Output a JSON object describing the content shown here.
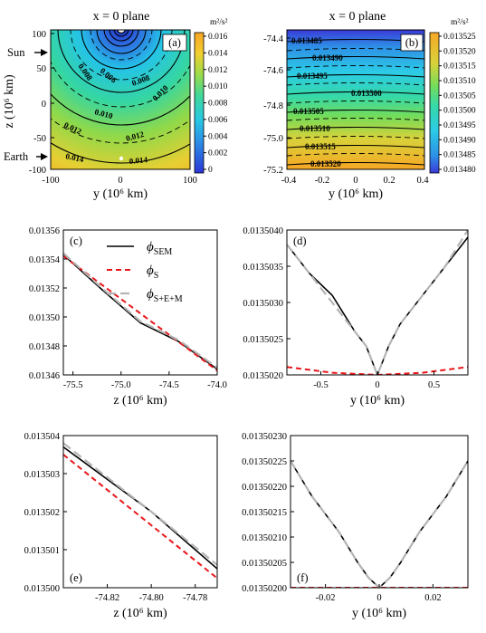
{
  "colors": {
    "sem": "#000000",
    "s": "#e8161b",
    "sem_total": "#b4b4b4",
    "sun_arrow": "#000000"
  },
  "panel_a": {
    "title": "x = 0 plane",
    "label": "(a)",
    "xlabel": "y (10⁶ km)",
    "ylabel": "z (10⁶ km)",
    "xticks": [
      "-100",
      "0",
      "100"
    ],
    "yticks": [
      "100",
      "50",
      "0",
      "-50",
      "-100"
    ],
    "colorbar_unit": "m²/s²",
    "colorbar_ticks": [
      "0.016",
      "0.014",
      "0.012",
      "0.010",
      "0.008",
      "0.006",
      "0.004",
      "0.002",
      "0"
    ],
    "contour_labels": [
      "0.006",
      "0.008",
      "0.008",
      "0.010",
      "0.010",
      "0.012",
      "0.012",
      "0.014",
      "0.014"
    ],
    "markers": {
      "sun": "Sun",
      "earth": "Earth"
    }
  },
  "panel_b": {
    "title": "x = 0 plane",
    "label": "(b)",
    "xlabel": "y (10⁶ km)",
    "xticks": [
      "-0.4",
      "-0.2",
      "0",
      "0.2",
      "0.4"
    ],
    "yticks": [
      "-74.4",
      "-74.6",
      "-74.8",
      "-75.0",
      "-75.2"
    ],
    "colorbar_unit": "m²/s²",
    "colorbar_ticks": [
      "0.013525",
      "0.013520",
      "0.013515",
      "0.013510",
      "0.013505",
      "0.013500",
      "0.013495",
      "0.013490",
      "0.013485",
      "0.013480"
    ],
    "contour_labels": [
      "0.013485",
      "0.013490",
      "0.013495",
      "0.013500",
      "0.013505",
      "0.013510",
      "0.013515",
      "0.013520"
    ]
  },
  "legend": {
    "entries": [
      {
        "main": "ϕ",
        "sub": "SEM"
      },
      {
        "main": "ϕ",
        "sub": "S"
      },
      {
        "main": "ϕ",
        "sub": "S+E+M"
      }
    ]
  },
  "chart_data": [
    {
      "id": "c",
      "type": "line",
      "label": "(c)",
      "xlabel": "z (10⁶ km)",
      "xlim": [
        -75.6,
        -74.0
      ],
      "ylim": [
        0.01346,
        0.01356
      ],
      "xticks": [
        -75.5,
        -75.0,
        -74.5,
        -74.0
      ],
      "xtick_labels": [
        "-75.5",
        "-75.0",
        "-74.5",
        "-74.0"
      ],
      "yticks": [
        0.01346,
        0.01348,
        0.0135,
        0.01352,
        0.01354,
        0.01356
      ],
      "ytick_labels": [
        "0.01346",
        "0.01348",
        "0.01350",
        "0.01352",
        "0.01354",
        "0.01356"
      ],
      "series": [
        {
          "name": "ϕSEM",
          "style": "solid",
          "color": "#000000",
          "x": [
            -75.6,
            -75.2,
            -74.8,
            -74.4,
            -74.0
          ],
          "y": [
            0.013543,
            0.013519,
            0.013496,
            0.013483,
            0.013464
          ]
        },
        {
          "name": "ϕS",
          "style": "dashed",
          "color": "#e8161b",
          "x": [
            -75.6,
            -74.0
          ],
          "y": [
            0.013542,
            0.013463
          ]
        },
        {
          "name": "ϕS+E+M",
          "style": "longdash",
          "color": "#b4b4b4",
          "x": [
            -75.6,
            -75.2,
            -74.8,
            -74.4,
            -74.0
          ],
          "y": [
            0.013544,
            0.01352,
            0.013497,
            0.013484,
            0.013465
          ]
        }
      ]
    },
    {
      "id": "d",
      "type": "line",
      "label": "(d)",
      "xlabel": "y (10⁶ km)",
      "xlim": [
        -0.8,
        0.8
      ],
      "ylim": [
        0.013502,
        0.013504
      ],
      "xticks": [
        -0.5,
        0,
        0.5
      ],
      "xtick_labels": [
        "-0.5",
        "0",
        "0.5"
      ],
      "yticks": [
        0.013502,
        0.0135025,
        0.013503,
        0.0135035,
        0.013504
      ],
      "ytick_labels": [
        "0.0135020",
        "0.0135025",
        "0.0135030",
        "0.0135035",
        "0.0135040"
      ],
      "series": [
        {
          "name": "ϕSEM",
          "style": "solid",
          "color": "#000000",
          "x": [
            -0.8,
            -0.6,
            -0.4,
            -0.2,
            -0.1,
            -0.05,
            0,
            0.05,
            0.1,
            0.2,
            0.4,
            0.6,
            0.8
          ],
          "y": [
            0.0135038,
            0.0135034,
            0.0135031,
            0.0135026,
            0.0135024,
            0.0135022,
            0.013502,
            0.0135022,
            0.0135024,
            0.0135027,
            0.0135031,
            0.0135035,
            0.0135039
          ]
        },
        {
          "name": "ϕS",
          "style": "dashed",
          "color": "#e8161b",
          "x": [
            -0.8,
            -0.4,
            0,
            0.4,
            0.8
          ],
          "y": [
            0.01350211,
            0.01350203,
            0.013502,
            0.01350203,
            0.01350211
          ]
        },
        {
          "name": "ϕS+E+M",
          "style": "longdash",
          "color": "#b4b4b4",
          "x": [
            -0.8,
            -0.6,
            -0.4,
            -0.2,
            -0.1,
            -0.05,
            0,
            0.05,
            0.1,
            0.2,
            0.4,
            0.6,
            0.8
          ],
          "y": [
            0.0135038,
            0.0135034,
            0.013503,
            0.0135026,
            0.0135024,
            0.0135022,
            0.013502,
            0.0135022,
            0.0135024,
            0.0135027,
            0.0135031,
            0.0135035,
            0.013504
          ]
        }
      ]
    },
    {
      "id": "e",
      "type": "line",
      "label": "(e)",
      "xlabel": "z (10⁶ km)",
      "xlim": [
        -74.84,
        -74.77
      ],
      "ylim": [
        0.0135,
        0.013504
      ],
      "xticks": [
        -74.82,
        -74.8,
        -74.78
      ],
      "xtick_labels": [
        "-74.82",
        "-74.80",
        "-74.78"
      ],
      "yticks": [
        0.0135,
        0.013501,
        0.013502,
        0.013503,
        0.013504
      ],
      "ytick_labels": [
        "0.013500",
        "0.013501",
        "0.013502",
        "0.013503",
        "0.013504"
      ],
      "series": [
        {
          "name": "ϕSEM",
          "style": "solid",
          "color": "#000000",
          "x": [
            -74.84,
            -74.8,
            -74.77
          ],
          "y": [
            0.0135037,
            0.013502,
            0.0135005
          ]
        },
        {
          "name": "ϕS",
          "style": "dashed",
          "color": "#e8161b",
          "x": [
            -74.84,
            -74.77
          ],
          "y": [
            0.0135035,
            0.01350025
          ]
        },
        {
          "name": "ϕS+E+M",
          "style": "longdash",
          "color": "#b4b4b4",
          "x": [
            -74.84,
            -74.8,
            -74.77
          ],
          "y": [
            0.0135038,
            0.013502,
            0.0135006
          ]
        }
      ]
    },
    {
      "id": "f",
      "type": "line",
      "label": "(f)",
      "xlabel": "y (10⁶ km)",
      "xlim": [
        -0.033,
        0.033
      ],
      "ylim": [
        0.013502,
        0.0135023
      ],
      "xticks": [
        -0.02,
        0,
        0.02
      ],
      "xtick_labels": [
        "-0.02",
        "0",
        "0.02"
      ],
      "yticks": [
        0.013502,
        0.01350205,
        0.0135021,
        0.01350215,
        0.0135022,
        0.01350225,
        0.0135023
      ],
      "ytick_labels": [
        "0.01350200",
        "0.01350205",
        "0.01350210",
        "0.01350215",
        "0.01350220",
        "0.01350225",
        "0.01350230"
      ],
      "series": [
        {
          "name": "ϕSEM",
          "style": "solid",
          "color": "#000000",
          "x": [
            -0.033,
            -0.025,
            -0.015,
            -0.008,
            -0.004,
            0,
            0.004,
            0.008,
            0.015,
            0.025,
            0.033
          ],
          "y": [
            0.01350225,
            0.01350218,
            0.01350211,
            0.01350205,
            0.01350202,
            0.013502,
            0.01350202,
            0.01350205,
            0.01350211,
            0.01350218,
            0.01350225
          ]
        },
        {
          "name": "ϕS",
          "style": "dashed",
          "color": "#e8161b",
          "x": [
            -0.033,
            0,
            0.033
          ],
          "y": [
            0.013502,
            0.013502,
            0.013502
          ]
        },
        {
          "name": "ϕS+E+M",
          "style": "longdash",
          "color": "#b4b4b4",
          "x": [
            -0.033,
            -0.025,
            -0.015,
            -0.008,
            -0.004,
            0,
            0.004,
            0.008,
            0.015,
            0.025,
            0.033
          ],
          "y": [
            0.01350225,
            0.01350218,
            0.01350211,
            0.01350205,
            0.01350202,
            0.013502,
            0.01350202,
            0.01350205,
            0.01350211,
            0.01350218,
            0.01350225
          ]
        }
      ]
    }
  ]
}
